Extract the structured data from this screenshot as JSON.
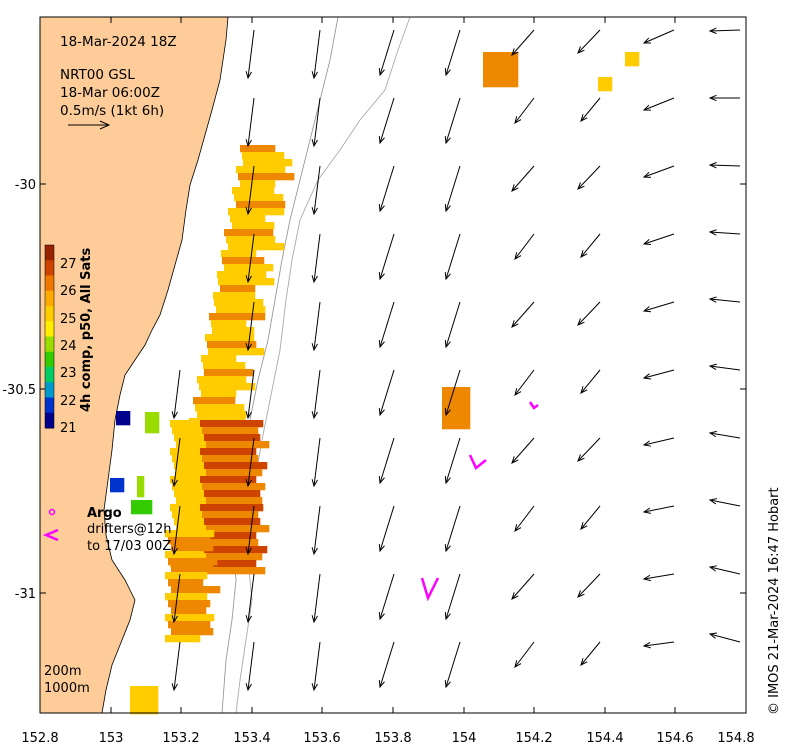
{
  "header": {
    "date": "18-Mar-2024 18Z",
    "product": "NRT00 GSL",
    "product_time": "18-Mar 06:00Z",
    "scale_label": "0.5m/s (1kt 6h)"
  },
  "axes": {
    "x_ticks": [
      "152.8",
      "153",
      "153.2",
      "153.4",
      "153.6",
      "153.8",
      "154",
      "154.2",
      "154.4",
      "154.6",
      "154.8"
    ],
    "y_ticks": [
      "-30",
      "-30.5",
      "-31"
    ],
    "x_range": [
      152.8,
      154.8
    ],
    "y_range": [
      -29.6,
      -31.3
    ]
  },
  "colorbar": {
    "title": "4h comp, p50, All Sats",
    "ticks": [
      "27",
      "26",
      "25",
      "24",
      "23",
      "22",
      "21"
    ],
    "min": 21,
    "max": 27.7,
    "colors": [
      "#00008c",
      "#0033cc",
      "#0099cc",
      "#00cc66",
      "#33cc00",
      "#99dd00",
      "#ffee00",
      "#ffcc00",
      "#ffaa00",
      "#ee7700",
      "#cc4400",
      "#992200"
    ]
  },
  "legend": {
    "argo_label": "Argo",
    "drifter_line1": "drifters@12h",
    "drifter_line2": "to 17/03 00Z",
    "isobath_200": "200m",
    "isobath_1000": "1000m"
  },
  "credit": "© IMOS 21-Mar-2024 16:47 Hobart",
  "colors": {
    "land": "#fdcc99",
    "drifter": "#ff00ff",
    "sst_warm": "#cc4400",
    "sst_mid": "#ee8800",
    "sst_cool": "#ffcc00"
  }
}
